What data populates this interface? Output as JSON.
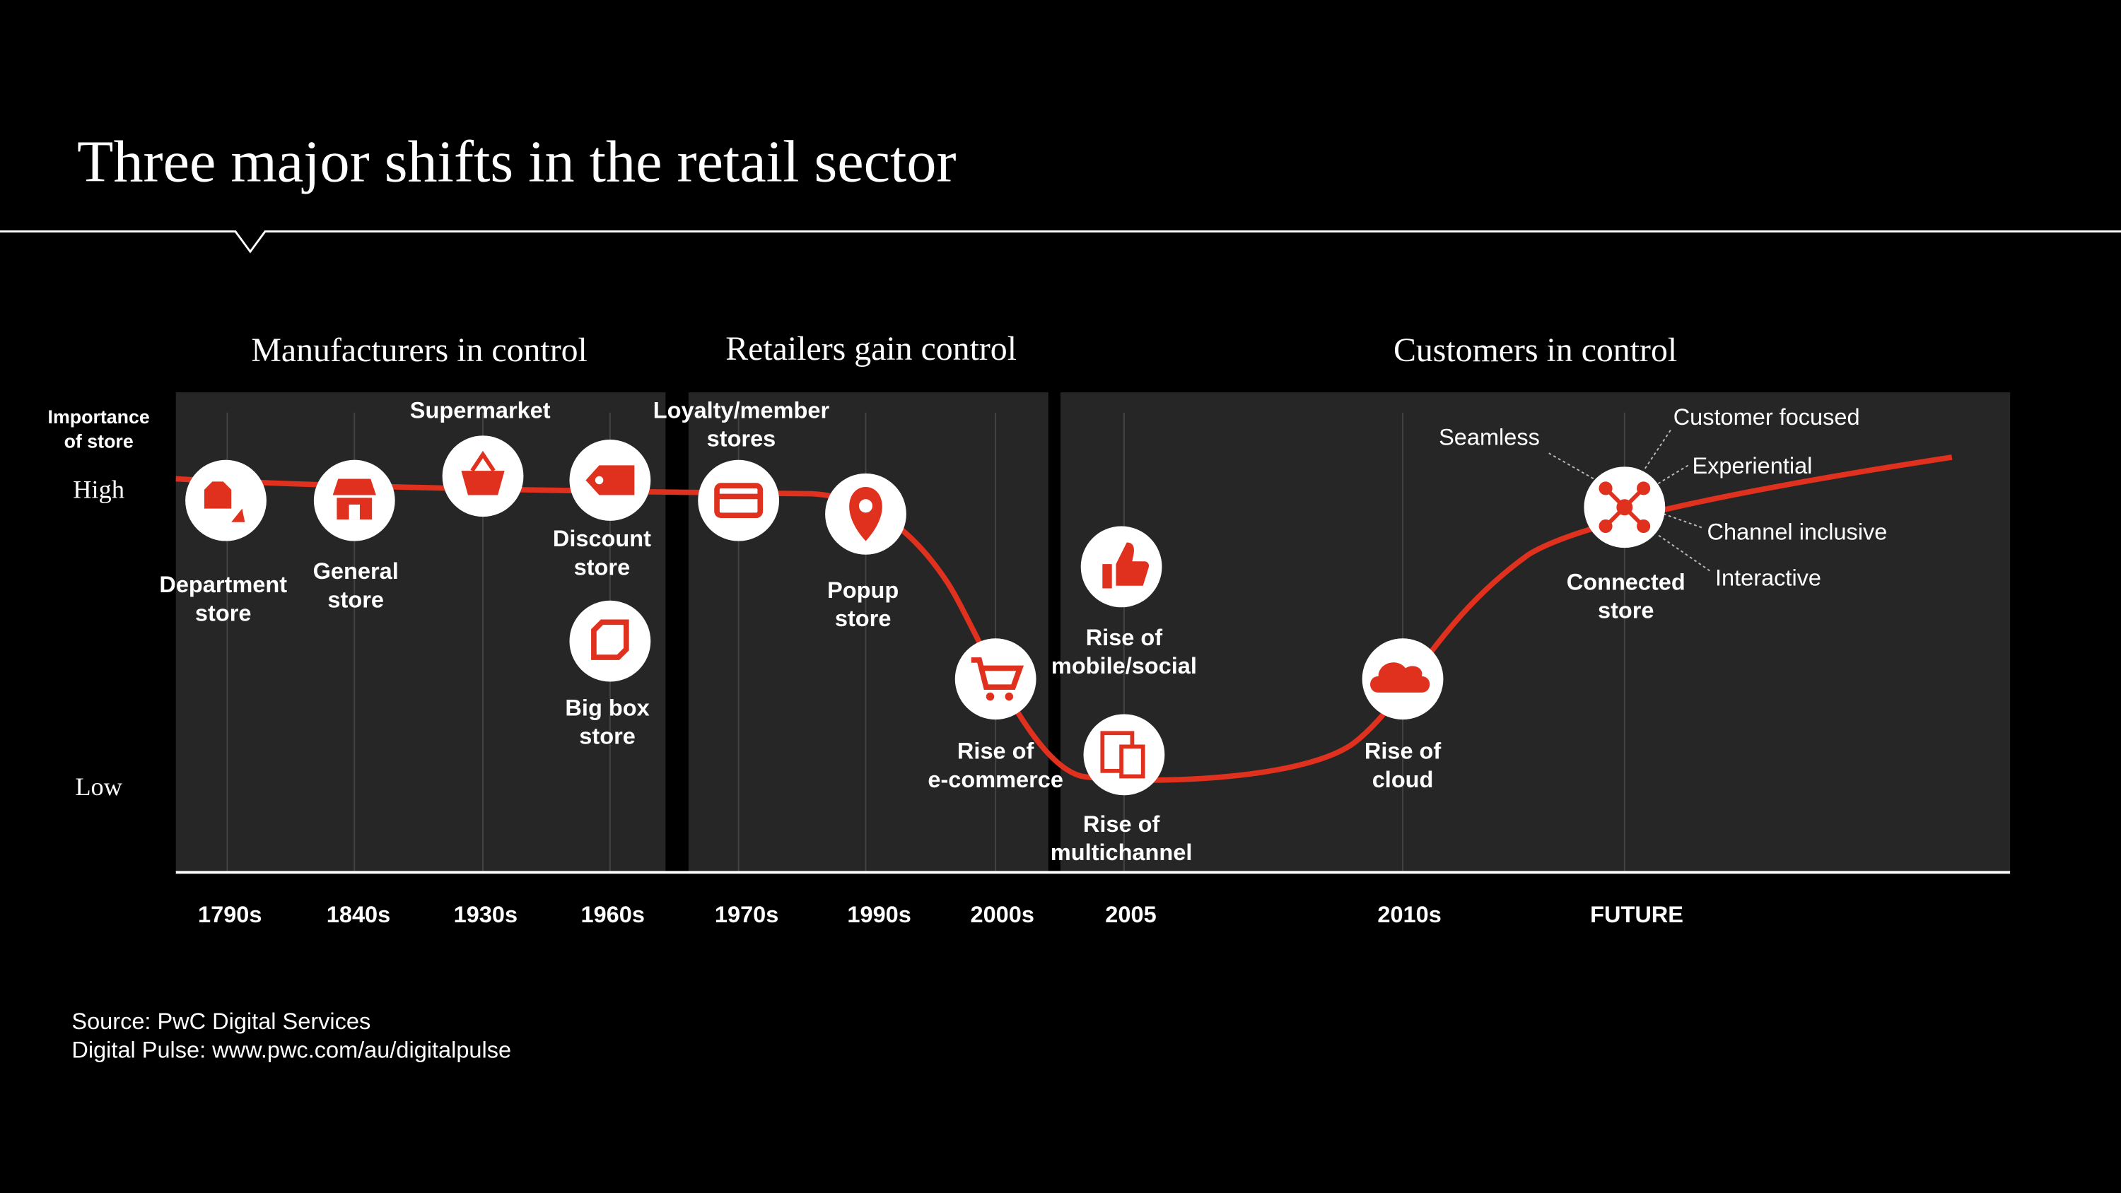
{
  "header": {
    "title": "Three major shifts in the retail sector"
  },
  "eras": [
    "Manufacturers in control",
    "Retailers gain control",
    "Customers in control"
  ],
  "y_axis": {
    "title": [
      "Importance",
      "of store"
    ],
    "high": "High",
    "low": "Low"
  },
  "x_labels": [
    "1790s",
    "1840s",
    "1930s",
    "1960s",
    "1970s",
    "1990s",
    "2000s",
    "2005",
    "2010s",
    "FUTURE"
  ],
  "milestones": [
    {
      "label": [
        "Department",
        "store"
      ]
    },
    {
      "label": [
        "General",
        "store"
      ]
    },
    {
      "label": [
        "Supermarket"
      ]
    },
    {
      "label": [
        "Discount",
        "store"
      ]
    },
    {
      "label": [
        "Big box",
        "store"
      ]
    },
    {
      "label": [
        "Loyalty/member",
        "stores"
      ]
    },
    {
      "label": [
        "Popup",
        "store"
      ]
    },
    {
      "label": [
        "Rise of",
        "e-commerce"
      ]
    },
    {
      "label": [
        "Rise of",
        "mobile/social"
      ]
    },
    {
      "label": [
        "Rise of",
        "multichannel"
      ]
    },
    {
      "label": [
        "Rise of",
        "cloud"
      ]
    },
    {
      "label": [
        "Connected",
        "store"
      ]
    }
  ],
  "attributes": [
    "Seamless",
    "Customer focused",
    "Experiential",
    "Channel inclusive",
    "Interactive"
  ],
  "footer": [
    "Source: PwC Digital Services",
    "Digital Pulse: www.pwc.com/au/digitalpulse"
  ]
}
